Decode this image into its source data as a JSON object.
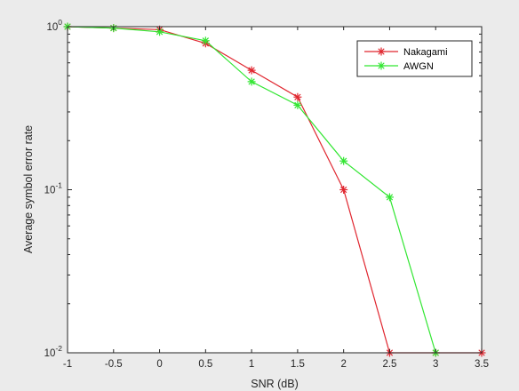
{
  "chart_data": {
    "type": "line",
    "xlabel": "SNR (dB)",
    "ylabel": "Average symbol error rate",
    "x": [
      -1,
      -0.5,
      0,
      0.5,
      1,
      1.5,
      2,
      2.5,
      3,
      3.5
    ],
    "xlim": [
      -1,
      3.5
    ],
    "ylim": [
      0.01,
      1
    ],
    "yscale": "log",
    "xticks": [
      "-1",
      "-0.5",
      "0",
      "0.5",
      "1",
      "1.5",
      "2",
      "2.5",
      "3",
      "3.5"
    ],
    "yticks": [
      {
        "value": 1,
        "base": "10",
        "exp": "0"
      },
      {
        "value": 0.1,
        "base": "10",
        "exp": "-1"
      },
      {
        "value": 0.01,
        "base": "10",
        "exp": "-2"
      }
    ],
    "grid": false,
    "legend_position": "top-right",
    "series": [
      {
        "name": "Nakagami",
        "color": "#e0262f",
        "marker": "asterisk",
        "values": [
          1.0,
          0.98,
          0.96,
          0.79,
          0.54,
          0.37,
          0.1,
          0.01,
          0.01,
          0.01
        ]
      },
      {
        "name": "AWGN",
        "color": "#32e632",
        "marker": "asterisk",
        "values": [
          1.0,
          0.98,
          0.93,
          0.82,
          0.46,
          0.33,
          0.15,
          0.09,
          0.01,
          null
        ]
      }
    ]
  }
}
